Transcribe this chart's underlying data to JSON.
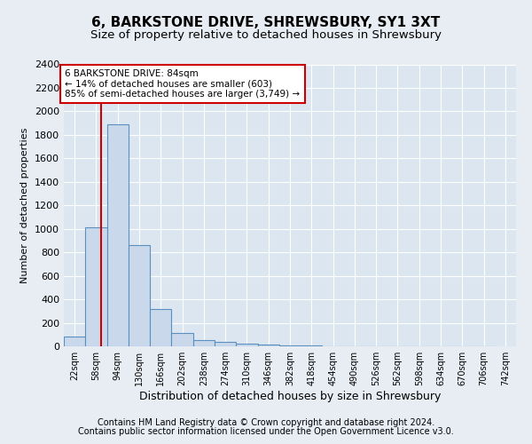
{
  "title1": "6, BARKSTONE DRIVE, SHREWSBURY, SY1 3XT",
  "title2": "Size of property relative to detached houses in Shrewsbury",
  "xlabel": "Distribution of detached houses by size in Shrewsbury",
  "ylabel": "Number of detached properties",
  "footnote1": "Contains HM Land Registry data © Crown copyright and database right 2024.",
  "footnote2": "Contains public sector information licensed under the Open Government Licence v3.0.",
  "bin_labels": [
    "22sqm",
    "58sqm",
    "94sqm",
    "130sqm",
    "166sqm",
    "202sqm",
    "238sqm",
    "274sqm",
    "310sqm",
    "346sqm",
    "382sqm",
    "418sqm",
    "454sqm",
    "490sqm",
    "526sqm",
    "562sqm",
    "598sqm",
    "634sqm",
    "670sqm",
    "706sqm",
    "742sqm"
  ],
  "bin_edges": [
    22,
    58,
    94,
    130,
    166,
    202,
    238,
    274,
    310,
    346,
    382,
    418,
    454,
    490,
    526,
    562,
    598,
    634,
    670,
    706,
    742
  ],
  "bar_heights": [
    80,
    1010,
    1890,
    860,
    315,
    110,
    50,
    40,
    25,
    15,
    10,
    5,
    3,
    2,
    1,
    1,
    0,
    0,
    0,
    0
  ],
  "bar_color": "#c9d9eb",
  "bar_edge_color": "#5a8fc0",
  "property_size": 84,
  "property_line_color": "#cc0000",
  "annotation_line1": "6 BARKSTONE DRIVE: 84sqm",
  "annotation_line2": "← 14% of detached houses are smaller (603)",
  "annotation_line3": "85% of semi-detached houses are larger (3,749) →",
  "annotation_box_color": "#ffffff",
  "annotation_box_edge": "#cc0000",
  "ylim": [
    0,
    2400
  ],
  "yticks": [
    0,
    200,
    400,
    600,
    800,
    1000,
    1200,
    1400,
    1600,
    1800,
    2000,
    2200,
    2400
  ],
  "background_color": "#e8edf4",
  "plot_bg_color": "#dce6f0",
  "grid_color": "#ffffff",
  "title1_fontsize": 11,
  "title2_fontsize": 9.5,
  "footnote_fontsize": 7,
  "ylabel_fontsize": 8,
  "xlabel_fontsize": 9
}
